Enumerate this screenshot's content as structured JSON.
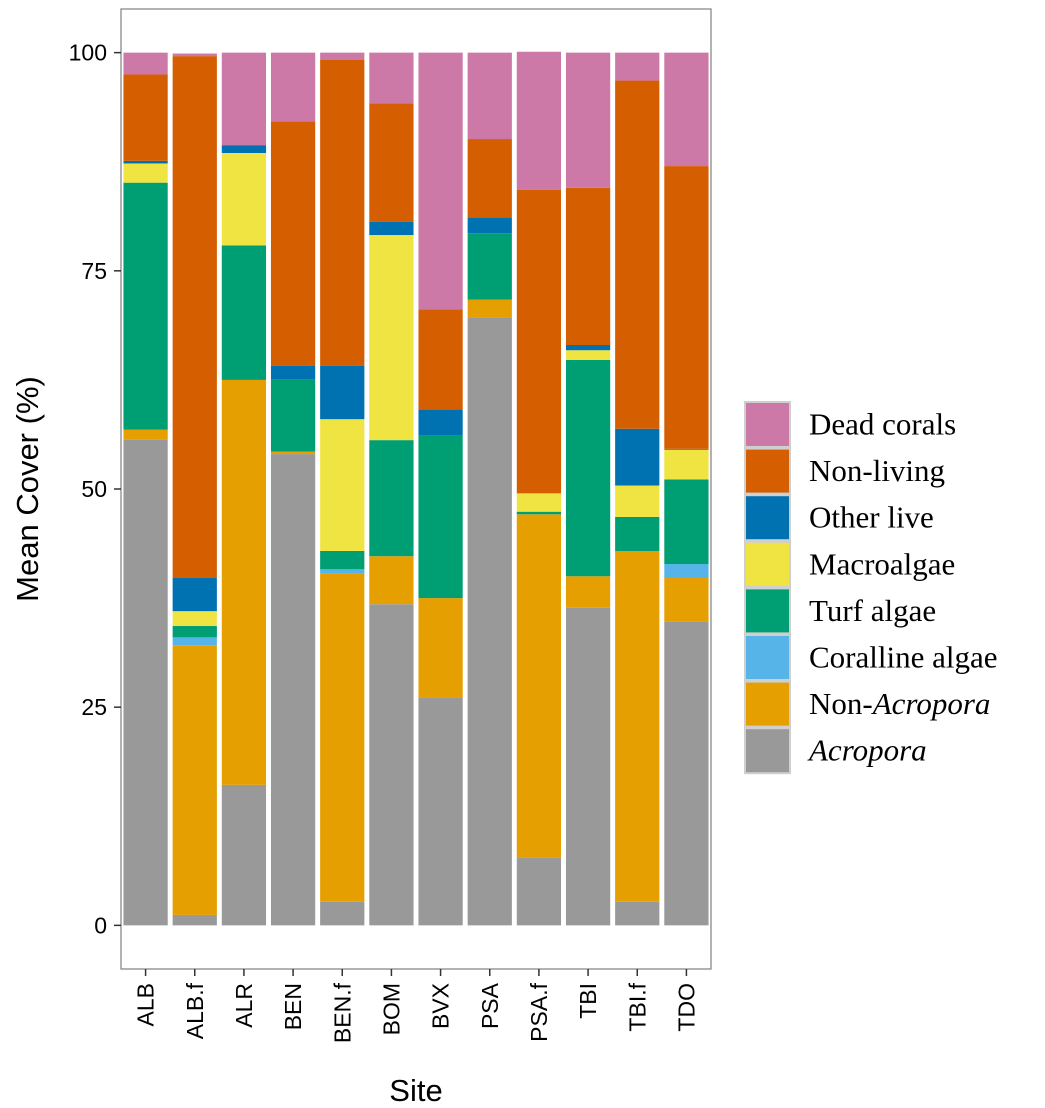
{
  "chart_data": {
    "type": "bar",
    "stacked": true,
    "xlabel": "Site",
    "ylabel": "Mean Cover (%)",
    "ylim": [
      -5,
      105
    ],
    "yticks": [
      0,
      25,
      50,
      75,
      100
    ],
    "grid": false,
    "legend_position": "right",
    "categories": [
      "ALB",
      "ALB.f",
      "ALR",
      "BEN",
      "BEN.f",
      "BOM",
      "BVX",
      "PSA",
      "PSA.f",
      "TBI",
      "TBI.f",
      "TDO"
    ],
    "series": [
      {
        "name": "Acropora",
        "label_parts": [
          {
            "text": "Acropora",
            "italic": true
          }
        ],
        "color": "#999999",
        "values": [
          55.7,
          1.2,
          16.1,
          54.0,
          2.7,
          36.8,
          26.1,
          69.6,
          7.8,
          36.4,
          2.7,
          34.8
        ]
      },
      {
        "name": "Non-Acropora",
        "label_parts": [
          {
            "text": "Non-",
            "italic": false
          },
          {
            "text": "Acropora",
            "italic": true
          }
        ],
        "color": "#E69F00",
        "values": [
          1.1,
          30.9,
          46.4,
          0.3,
          37.6,
          5.5,
          11.4,
          2.1,
          39.3,
          3.6,
          40.2,
          5.0
        ]
      },
      {
        "name": "Coralline algae",
        "label_parts": [
          {
            "text": "Coralline algae",
            "italic": false
          }
        ],
        "color": "#56B4E9",
        "values": [
          0,
          0.9,
          0,
          0,
          0.5,
          0,
          0,
          0,
          0,
          0,
          0,
          1.6
        ]
      },
      {
        "name": "Turf algae",
        "label_parts": [
          {
            "text": "Turf algae",
            "italic": false
          }
        ],
        "color": "#009E73",
        "values": [
          28.3,
          1.3,
          15.4,
          8.3,
          2.1,
          13.3,
          18.6,
          7.6,
          0.3,
          24.8,
          3.9,
          9.7
        ]
      },
      {
        "name": "Macroalgae",
        "label_parts": [
          {
            "text": "Macroalgae",
            "italic": false
          }
        ],
        "color": "#F0E442",
        "values": [
          2.2,
          1.7,
          10.6,
          0,
          15.1,
          23.5,
          0,
          0,
          2.1,
          1.1,
          3.6,
          3.4
        ]
      },
      {
        "name": "Other live",
        "label_parts": [
          {
            "text": "Other live",
            "italic": false
          }
        ],
        "color": "#0072B2",
        "values": [
          0.3,
          3.8,
          0.9,
          1.5,
          6.1,
          1.5,
          3.0,
          1.8,
          0,
          0.6,
          6.5,
          0.1
        ]
      },
      {
        "name": "Non-living",
        "label_parts": [
          {
            "text": "Non-living",
            "italic": false
          }
        ],
        "color": "#D55E00",
        "values": [
          9.9,
          59.8,
          0,
          28.0,
          35.1,
          13.6,
          11.5,
          9.0,
          34.8,
          18.0,
          39.9,
          32.4
        ]
      },
      {
        "name": "Dead corals",
        "label_parts": [
          {
            "text": "Dead corals",
            "italic": false
          }
        ],
        "color": "#CC79A7",
        "values": [
          2.5,
          0.3,
          10.6,
          7.9,
          0.8,
          5.8,
          29.4,
          9.9,
          15.8,
          15.5,
          3.2,
          13.0
        ]
      }
    ]
  }
}
